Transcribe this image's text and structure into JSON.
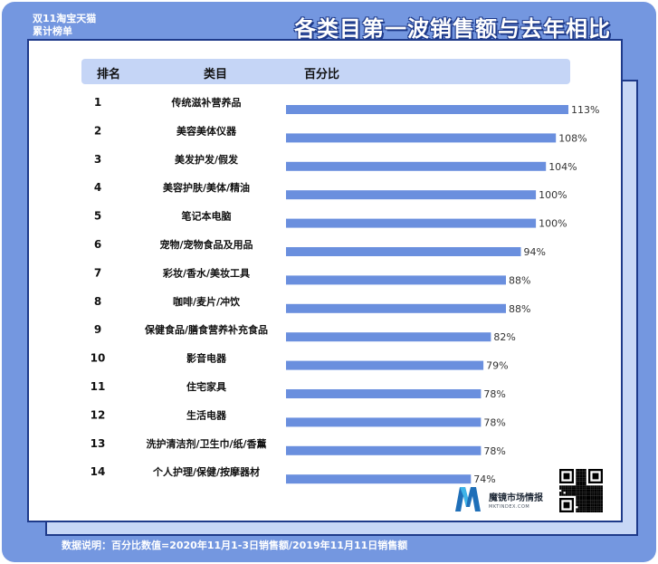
{
  "header": {
    "tag_line1": "双11淘宝天猫",
    "tag_line2": "累计榜单",
    "title": "各类目第一波销售额与去年相比"
  },
  "table_header": {
    "rank": "排名",
    "category": "类目",
    "percent": "百分比"
  },
  "chart_data": {
    "type": "bar",
    "orientation": "horizontal",
    "title": "各类目第一波销售额与去年相比",
    "ranks": [
      "1",
      "2",
      "3",
      "4",
      "5",
      "6",
      "7",
      "8",
      "9",
      "10",
      "11",
      "12",
      "13",
      "14"
    ],
    "categories": [
      "传统滋补营养品",
      "美容美体仪器",
      "美发护发/假发",
      "美容护肤/美体/精油",
      "笔记本电脑",
      "宠物/宠物食品及用品",
      "彩妆/香水/美妆工具",
      "咖啡/麦片/冲饮",
      "保健食品/膳食营养补充食品",
      "影音电器",
      "住宅家具",
      "生活电器",
      "洗护清洁剂/卫生巾/纸/香薰",
      "个人护理/保健/按摩器材"
    ],
    "values": [
      113,
      108,
      104,
      100,
      100,
      94,
      88,
      88,
      82,
      79,
      78,
      78,
      78,
      74
    ],
    "value_labels": [
      "113%",
      "108%",
      "104%",
      "100%",
      "100%",
      "94%",
      "88%",
      "88%",
      "82%",
      "79%",
      "78%",
      "78%",
      "78%",
      "74%"
    ],
    "unit": "%",
    "xlim": [
      0,
      113
    ],
    "bar_color": "#6a8fde",
    "grid": false,
    "legend": "none"
  },
  "footnote": "数据说明：百分比数值=2020年11月1-3日销售额/2019年11月11日销售额",
  "logo": {
    "name": "魔镜市场情报",
    "sub": "MKTINDEX.COM"
  },
  "colors": {
    "frame": "#7497e0",
    "header_bar": "#c5d5f6",
    "border": "#1e3a8a",
    "bar": "#6a8fde"
  }
}
